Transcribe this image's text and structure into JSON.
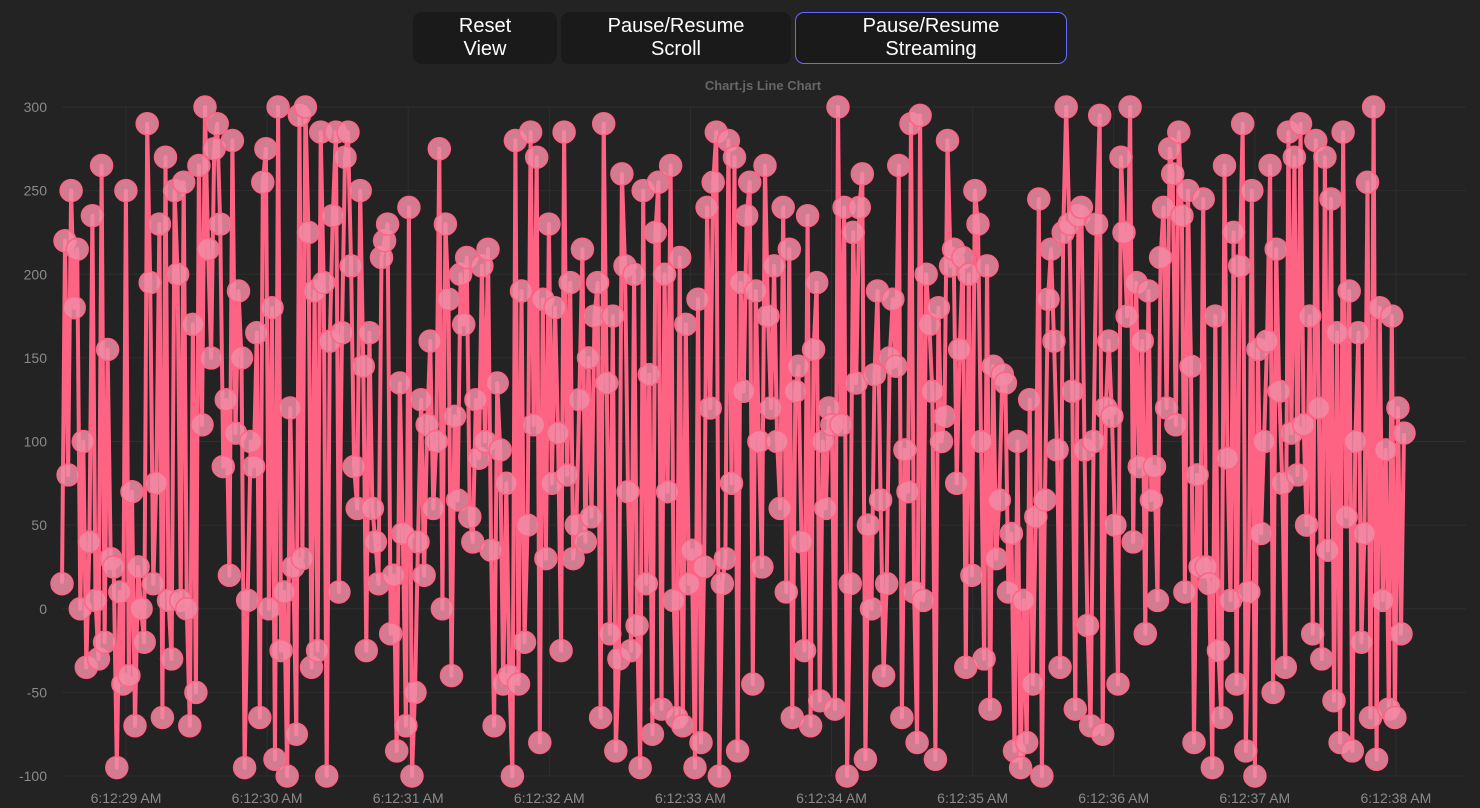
{
  "toolbar": {
    "reset_label": "Reset View",
    "scroll_label": "Pause/Resume Scroll",
    "stream_label": "Pause/Resume Streaming"
  },
  "colors": {
    "background": "#232323",
    "line": "#ff6384",
    "point_fill": "#f28ba4",
    "grid": "#2e2e2e",
    "tick_text": "#8a8a8a",
    "focus_border": "#646cff"
  },
  "chart_data": {
    "type": "line",
    "title": "Chart.js Line Chart",
    "xlabel": "",
    "ylabel": "",
    "ylim": [
      -100,
      300
    ],
    "y_ticks": [
      "300",
      "250",
      "200",
      "150",
      "100",
      "50",
      "0",
      "-50",
      "-100"
    ],
    "x_ticks": [
      "6:12:29 AM",
      "6:12:30 AM",
      "6:12:31 AM",
      "6:12:32 AM",
      "6:12:33 AM",
      "6:12:34 AM",
      "6:12:35 AM",
      "6:12:36 AM",
      "6:12:37 AM",
      "6:12:38 AM"
    ],
    "x_range": [
      "6:12:28.6 AM",
      "6:12:38.5 AM"
    ],
    "grid": true,
    "legend": "none",
    "series": [
      {
        "values": [
          15,
          220,
          80,
          250,
          180,
          215,
          0,
          100,
          -35,
          40,
          235,
          5,
          -30,
          265,
          -20,
          155,
          30,
          25,
          -95,
          10,
          -45,
          250,
          -40,
          70,
          -70,
          25,
          0,
          -20,
          290,
          195,
          15,
          75,
          230,
          -65,
          270,
          5,
          -30,
          250,
          200,
          5,
          255,
          0,
          -70,
          170,
          -50,
          265,
          110,
          300,
          215,
          150,
          275,
          290,
          230,
          85,
          125,
          20,
          280,
          105,
          190,
          150,
          -95,
          5,
          100,
          85,
          165,
          -65,
          255,
          275,
          0,
          180,
          -90,
          300,
          -25,
          10,
          -100,
          120,
          25,
          -75,
          295,
          30,
          300,
          225,
          -35,
          190,
          -25,
          285,
          195,
          -100,
          160,
          235,
          285,
          10,
          165,
          270,
          285,
          205,
          85,
          60,
          250,
          145,
          -25,
          165,
          60,
          40,
          15,
          210,
          220,
          230,
          -15,
          20,
          -85,
          135,
          45,
          -70,
          240,
          -100,
          -50,
          40,
          125,
          20,
          110,
          160,
          60,
          100,
          275,
          0,
          230,
          185,
          -40,
          115,
          65,
          200,
          170,
          210,
          55,
          40,
          125,
          90,
          205,
          100,
          215,
          35,
          -70,
          135,
          95,
          -45,
          75,
          -40,
          -100,
          280,
          -45,
          190,
          -20,
          50,
          285,
          110,
          270,
          -80,
          185,
          30,
          230,
          75,
          180,
          105,
          -25,
          285,
          80,
          195,
          30,
          50,
          125,
          215,
          40,
          150,
          55,
          175,
          195,
          -65,
          290,
          135,
          -15,
          175,
          -85,
          -30,
          260,
          205,
          70,
          -25,
          200,
          -10,
          -95,
          250,
          15,
          140,
          -75,
          225,
          255,
          -60,
          200,
          70,
          265,
          5,
          -65,
          210,
          -70,
          170,
          15,
          35,
          -95,
          185,
          -80,
          25,
          240,
          120,
          255,
          285,
          -100,
          15,
          30,
          280,
          75,
          270,
          -85,
          195,
          130,
          235,
          255,
          -45,
          190,
          100,
          25,
          265,
          175,
          120,
          205,
          100,
          60,
          240,
          10,
          215,
          -65,
          130,
          145,
          40,
          -25,
          235,
          -70,
          155,
          195,
          -55,
          100,
          60,
          120,
          110,
          -60,
          300,
          110,
          240,
          -100,
          15,
          225,
          135,
          240,
          260,
          -90,
          50,
          0,
          140,
          190,
          65,
          -40,
          15,
          150,
          185,
          145,
          265,
          -65,
          95,
          70,
          290,
          10,
          -80,
          295,
          5,
          200,
          170,
          130,
          -90,
          180,
          100,
          115,
          280,
          205,
          215,
          75,
          155,
          210,
          -35,
          200,
          20,
          250,
          230,
          100,
          -30,
          205,
          -60,
          145,
          30,
          65,
          140,
          135,
          10,
          45,
          -85,
          100,
          -95,
          5,
          -80,
          125,
          -45,
          55,
          245,
          -100,
          65,
          185,
          215,
          160,
          95,
          -35,
          225,
          300,
          230,
          130,
          -60,
          235,
          240,
          95,
          -10,
          -70,
          100,
          230,
          295,
          -75,
          120,
          160,
          115,
          50,
          -45,
          270,
          225,
          175,
          300,
          40,
          195,
          85,
          160,
          -15,
          190,
          65,
          85,
          5,
          210,
          240,
          120,
          275,
          260,
          110,
          285,
          235,
          10,
          250,
          145,
          -80,
          80,
          25,
          245,
          25,
          15,
          -95,
          175,
          -25,
          -65,
          265,
          90,
          5,
          225,
          -45,
          205,
          290,
          -85,
          10,
          250,
          -100,
          155,
          45,
          100,
          160,
          265,
          -50,
          215,
          130,
          75,
          -35,
          285,
          105,
          270,
          80,
          290,
          110,
          50,
          175,
          -15,
          280,
          120,
          -30,
          270,
          35,
          245,
          -55,
          165,
          -80,
          285,
          55,
          190,
          -85,
          100,
          165,
          -20,
          45,
          255,
          -65,
          300,
          -90,
          180,
          5,
          95,
          -60,
          175,
          -65,
          120,
          -15,
          105
        ]
      }
    ]
  }
}
